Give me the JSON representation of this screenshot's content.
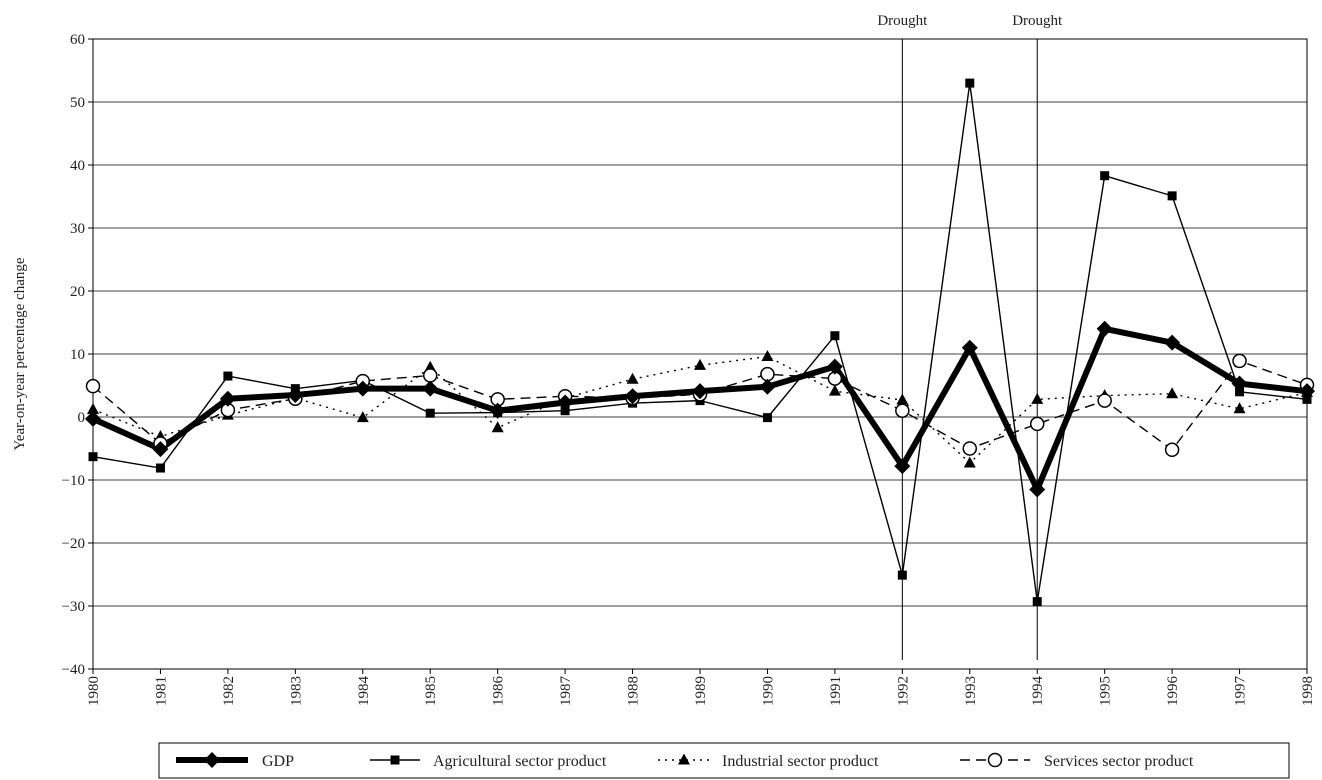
{
  "chart_data": {
    "type": "line",
    "title": "",
    "xlabel": "",
    "ylabel": "Year-on-year percentage change",
    "ylim": [
      -40,
      60
    ],
    "yticks": [
      -40,
      -30,
      -20,
      -10,
      0,
      10,
      20,
      30,
      40,
      50,
      60
    ],
    "y_tick_labels": [
      "−40",
      "−30",
      "−20",
      "−10",
      "0",
      "10",
      "20",
      "30",
      "40",
      "50",
      "60"
    ],
    "grid": true,
    "legend_position": "bottom",
    "x": [
      "1980",
      "1981",
      "1982",
      "1983",
      "1984",
      "1985",
      "1986",
      "1987",
      "1988",
      "1989",
      "1990",
      "1991",
      "1992",
      "1993",
      "1994",
      "1995",
      "1996",
      "1997",
      "1998"
    ],
    "series": [
      {
        "name": "GDP",
        "style": "thick-solid",
        "marker": "diamond",
        "values": [
          -0.3,
          -5.1,
          2.9,
          3.5,
          4.5,
          4.5,
          1.0,
          2.3,
          3.3,
          4.1,
          4.8,
          8.0,
          -7.8,
          11.0,
          -11.5,
          14.0,
          11.8,
          5.3,
          4.1
        ]
      },
      {
        "name": "Agricultural sector product",
        "style": "solid",
        "marker": "square",
        "values": [
          -6.3,
          -8.1,
          6.5,
          4.5,
          5.8,
          0.6,
          0.7,
          1.0,
          2.2,
          2.6,
          -0.1,
          12.9,
          -25.1,
          53.0,
          -29.3,
          38.3,
          35.1,
          4.0,
          2.8
        ]
      },
      {
        "name": "Industrial sector product",
        "style": "dotted",
        "marker": "triangle",
        "values": [
          1.2,
          -3.1,
          0.3,
          3.0,
          -0.1,
          7.9,
          -1.7,
          3.0,
          6.0,
          8.2,
          9.6,
          4.1,
          2.7,
          -7.3,
          2.8,
          3.4,
          3.7,
          1.3,
          3.9
        ]
      },
      {
        "name": "Services sector product",
        "style": "dashed",
        "marker": "open-circle",
        "values": [
          4.9,
          -4.2,
          1.1,
          2.9,
          5.7,
          6.6,
          2.8,
          3.3,
          3.0,
          3.6,
          6.8,
          6.1,
          1.0,
          -5.0,
          -1.1,
          2.6,
          -5.2,
          8.9,
          5.1
        ]
      }
    ],
    "annotations": [
      {
        "text": "Drought",
        "x": "1992"
      },
      {
        "text": "Drought",
        "x": "1994"
      }
    ]
  }
}
